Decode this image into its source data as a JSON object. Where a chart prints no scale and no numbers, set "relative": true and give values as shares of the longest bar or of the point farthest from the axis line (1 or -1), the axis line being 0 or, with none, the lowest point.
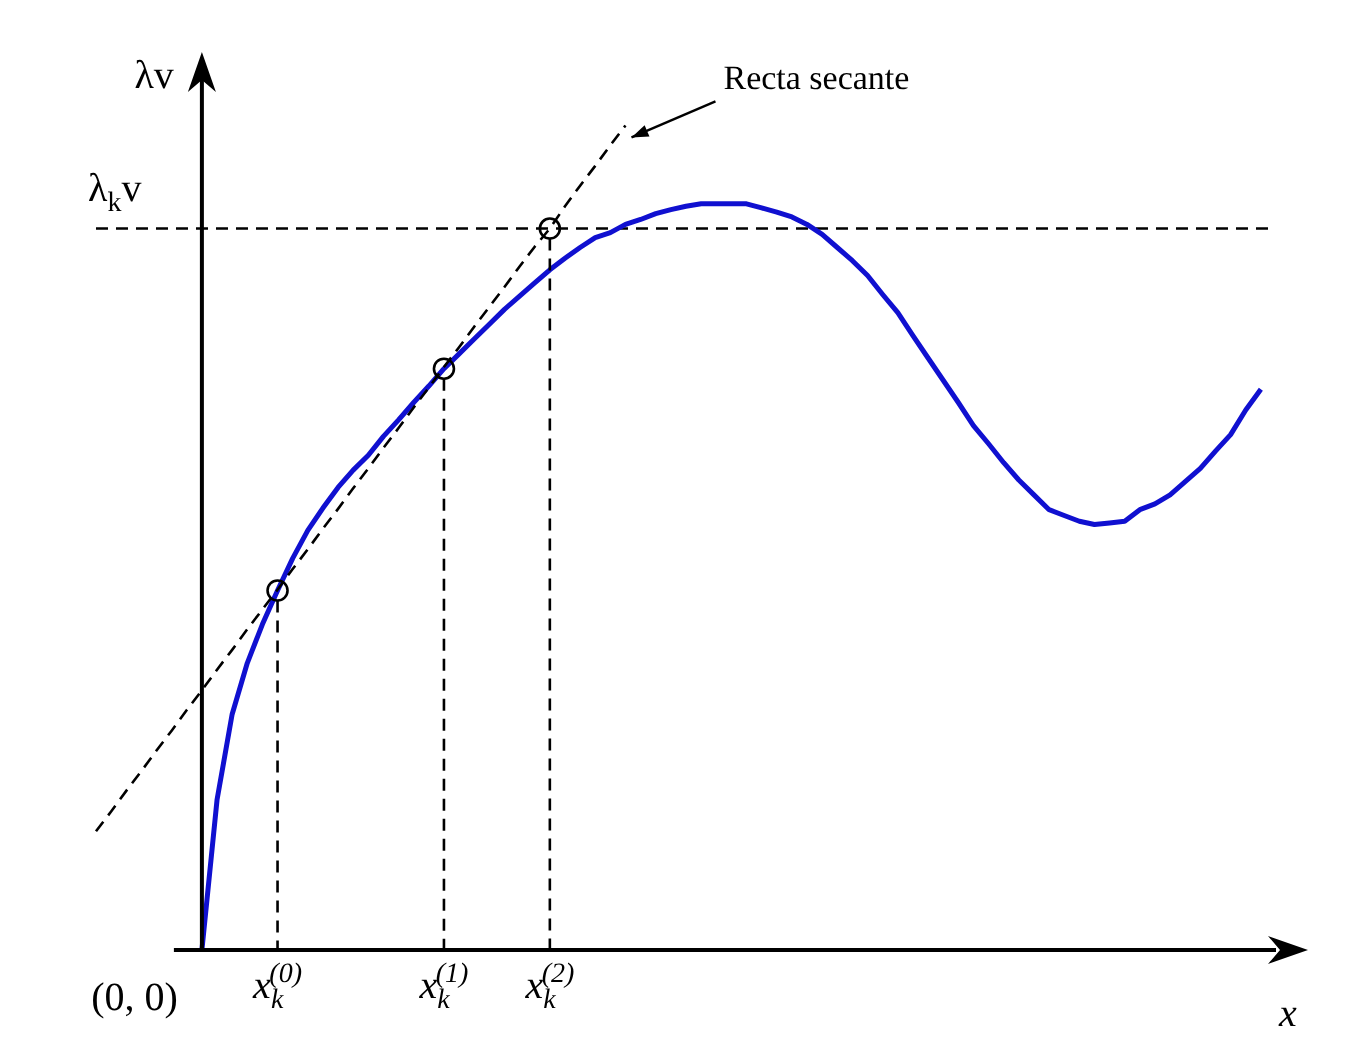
{
  "chart_data": {
    "type": "line",
    "relative": true,
    "ylabel": "λv",
    "xlabel": "x",
    "categories": [
      null,
      null,
      null,
      null,
      null,
      null,
      null,
      null,
      null,
      null,
      null,
      null,
      "x$_{k}$$^{(0)}$",
      null,
      null,
      null,
      null,
      null,
      null,
      null,
      null,
      null,
      null,
      "x$_{k}$$^{(1)}$",
      null,
      null,
      null,
      null,
      null,
      null,
      "x$_{k}$$^{(2)}$",
      null,
      null,
      null,
      null,
      null,
      null,
      null,
      null,
      null,
      null,
      null,
      null,
      null,
      null,
      null,
      null,
      null,
      null,
      null,
      null,
      null,
      null,
      null,
      null,
      null,
      null,
      null,
      null,
      null,
      null,
      null,
      null,
      null,
      null,
      null,
      null,
      null,
      null,
      null,
      null,
      null,
      null,
      null,
      null,
      null,
      null,
      null,
      null
    ],
    "series": [
      {
        "color": "#1010d0",
        "line_style": "solid",
        "marker": "none",
        "values": [
          null,
          null,
          null,
          null,
          null,
          null,
          null,
          0,
          0.182,
          0.286,
          0.348,
          0.395,
          0.436,
          0.475,
          0.509,
          0.536,
          0.561,
          0.582,
          0.6,
          0.623,
          0.643,
          0.664,
          0.684,
          0.705,
          0.723,
          0.741,
          0.759,
          0.777,
          0.793,
          0.809,
          0.825,
          0.839,
          0.852,
          0.864,
          0.87,
          0.88,
          0.886,
          0.893,
          0.898,
          0.902,
          0.905,
          0.905,
          0.905,
          0.905,
          0.9,
          0.895,
          0.889,
          0.88,
          0.868,
          0.852,
          0.836,
          0.818,
          0.795,
          0.773,
          0.745,
          0.718,
          0.691,
          0.664,
          0.636,
          0.614,
          0.591,
          0.57,
          0.552,
          0.534,
          0.527,
          0.52,
          0.516,
          0.518,
          0.52,
          0.534,
          0.541,
          0.552,
          0.568,
          0.584,
          0.605,
          0.625,
          0.655,
          0.68,
          null
        ]
      },
      {
        "color": "#000000",
        "line_style": "dashed",
        "marker": "none",
        "values": [
          0.144,
          0.168,
          0.193,
          0.217,
          0.242,
          0.266,
          0.291,
          0.315,
          0.34,
          0.364,
          0.389,
          0.413,
          0.437,
          0.462,
          0.486,
          0.511,
          0.535,
          0.56,
          0.584,
          0.609,
          0.633,
          0.658,
          0.682,
          0.707,
          0.731,
          0.756,
          0.78,
          0.804,
          0.829,
          0.853,
          0.875,
          0.902,
          0.927,
          0.951,
          0.976,
          1.0,
          null,
          null,
          null,
          null,
          null,
          null,
          null,
          null,
          null,
          null,
          null,
          null,
          null,
          null,
          null,
          null,
          null,
          null,
          null,
          null,
          null,
          null,
          null,
          null,
          null,
          null,
          null,
          null,
          null,
          null,
          null,
          null,
          null,
          null,
          null,
          null,
          null,
          null,
          null,
          null,
          null,
          null,
          null
        ]
      },
      {
        "type": "lollipop",
        "color": "#000000",
        "line_style": "dashed",
        "marker": "circle",
        "values": [
          null,
          null,
          null,
          null,
          null,
          null,
          null,
          null,
          null,
          null,
          null,
          null,
          0.436,
          null,
          null,
          null,
          null,
          null,
          null,
          null,
          null,
          null,
          null,
          0.705,
          null,
          null,
          null,
          null,
          null,
          null,
          0.875,
          null,
          null,
          null,
          null,
          null,
          null,
          null,
          null,
          null,
          null,
          null,
          null,
          null,
          null,
          null,
          null,
          null,
          null,
          null,
          null,
          null,
          null,
          null,
          null,
          null,
          null,
          null,
          null,
          null,
          null,
          null,
          null,
          null,
          null,
          null,
          null,
          null,
          null,
          null,
          null,
          null,
          null,
          null,
          null,
          null,
          null,
          null,
          null
        ]
      }
    ],
    "ref_lines": [
      {
        "axis": "y",
        "value": 0.875,
        "label": "λ$_{k}$v",
        "line_style": "dashed",
        "color": "#000000"
      }
    ],
    "annotations": [
      "Recta secante",
      "(0, 0)"
    ]
  }
}
